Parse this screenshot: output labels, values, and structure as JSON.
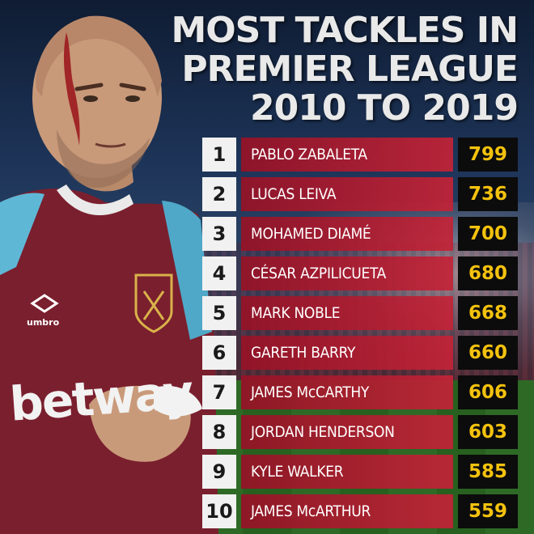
{
  "header": {
    "title_lines": [
      "MOST TACKLES IN",
      "PREMIER LEAGUE",
      "2010 TO 2019"
    ]
  },
  "colors": {
    "name_bar": "#b01f35",
    "value_box": "#0c0c0c",
    "value_text": "#f4c20d",
    "rank_box": "#f1f1f1"
  },
  "player": {
    "shirt_sponsor": "betway",
    "kit_brand": "umbro"
  },
  "chart_data": {
    "type": "table",
    "title": "MOST TACKLES IN PREMIER LEAGUE 2010 TO 2019",
    "columns": [
      "rank",
      "player",
      "tackles"
    ],
    "rows": [
      {
        "rank": "1",
        "player": "PABLO ZABALETA",
        "tackles": 799
      },
      {
        "rank": "2",
        "player": "LUCAS LEIVA",
        "tackles": 736
      },
      {
        "rank": "3",
        "player": "MOHAMED DIAMÉ",
        "tackles": 700
      },
      {
        "rank": "4",
        "player": "CÉSAR AZPILICUETA",
        "tackles": 680
      },
      {
        "rank": "5",
        "player": "MARK NOBLE",
        "tackles": 668
      },
      {
        "rank": "6",
        "player": "GARETH BARRY",
        "tackles": 660
      },
      {
        "rank": "7",
        "player": "JAMES McCARTHY",
        "tackles": 606
      },
      {
        "rank": "8",
        "player": "JORDAN HENDERSON",
        "tackles": 603
      },
      {
        "rank": "9",
        "player": "KYLE WALKER",
        "tackles": 585
      },
      {
        "rank": "10",
        "player": "JAMES McARTHUR",
        "tackles": 559
      }
    ]
  }
}
